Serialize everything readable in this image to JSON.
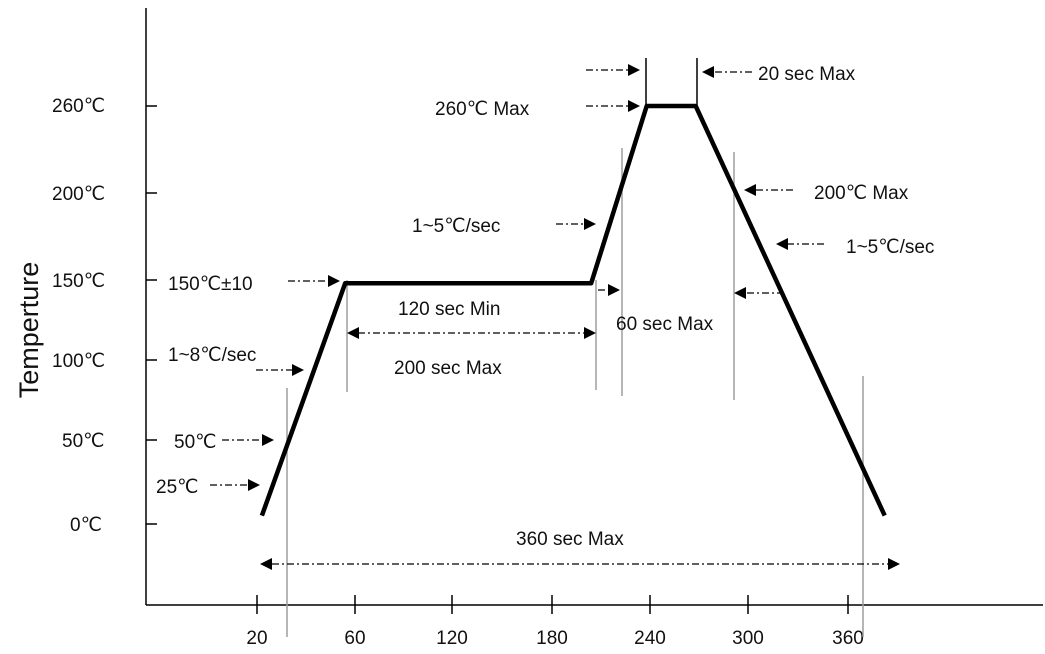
{
  "chart_data": {
    "type": "line",
    "title": "",
    "xlabel": "",
    "ylabel": "Temperture",
    "x_ticks": [
      "20",
      "60",
      "120",
      "180",
      "240",
      "300",
      "360"
    ],
    "y_ticks": [
      "260℃",
      "200℃",
      "150℃",
      "100℃",
      "50℃",
      "0℃"
    ],
    "grid": false,
    "legend": "none",
    "line_color": "#000000",
    "marker_color": "#9e9e9e",
    "series": [
      {
        "x": [
          22,
          56,
          204,
          238,
          268,
          382
        ],
        "y": [
          5,
          148,
          148,
          260,
          260,
          5
        ]
      }
    ],
    "annotations": {
      "peak_max": "260℃ Max",
      "peak_time": "20 sec Max",
      "cool_start": "200℃ Max",
      "cool_rate": "1~5℃/sec",
      "ramp_to_peak": "1~5℃/sec",
      "soak_temp": "150℃±10",
      "soak_min": "120 sec Min",
      "soak_max": "200 sec Max",
      "above_liquidus": "60 sec Max",
      "preheat_rate": "1~8℃/sec",
      "start_50": "50℃",
      "start_25": "25℃",
      "total_time": "360 sec Max"
    }
  }
}
